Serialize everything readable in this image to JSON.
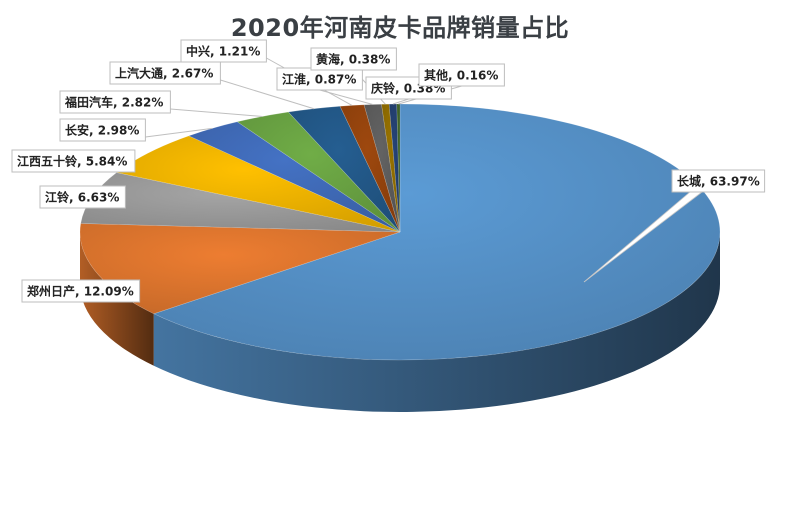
{
  "chart_data": {
    "type": "pie",
    "title": "2020年河南皮卡品牌销量占比",
    "slices": [
      {
        "name": "长城",
        "value": 63.97,
        "label": "长城, 63.97%",
        "color": "#5b9bd5"
      },
      {
        "name": "郑州日产",
        "value": 12.09,
        "label": "郑州日产, 12.09%",
        "color": "#ed7d31"
      },
      {
        "name": "江铃",
        "value": 6.63,
        "label": "江铃, 6.63%",
        "color": "#a5a5a5"
      },
      {
        "name": "江西五十铃",
        "value": 5.84,
        "label": "江西五十铃, 5.84%",
        "color": "#ffc000"
      },
      {
        "name": "长安",
        "value": 2.98,
        "label": "长安, 2.98%",
        "color": "#4472c4"
      },
      {
        "name": "福田汽车",
        "value": 2.82,
        "label": "福田汽车, 2.82%",
        "color": "#70ad47"
      },
      {
        "name": "上汽大通",
        "value": 2.67,
        "label": "上汽大通, 2.67%",
        "color": "#255e91"
      },
      {
        "name": "中兴",
        "value": 1.21,
        "label": "中兴, 1.21%",
        "color": "#9e480e"
      },
      {
        "name": "江淮",
        "value": 0.87,
        "label": "江淮, 0.87%",
        "color": "#636363"
      },
      {
        "name": "黄海",
        "value": 0.38,
        "label": "黄海, 0.38%",
        "color": "#997300"
      },
      {
        "name": "庆铃",
        "value": 0.38,
        "label": "庆铃, 0.38%",
        "color": "#264478"
      },
      {
        "name": "其他",
        "value": 0.16,
        "label": "其他, 0.16%",
        "color": "#43682b"
      }
    ]
  }
}
